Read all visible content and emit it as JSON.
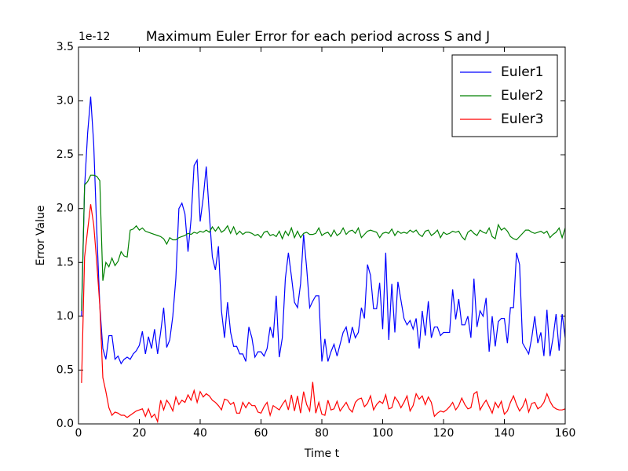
{
  "chart_data": {
    "type": "line",
    "title": "Maximum Euler Error for each period across S and J",
    "y_offset_label": "1e-12",
    "xlabel": "Time t",
    "ylabel": "Error Value",
    "xlim": [
      0,
      160
    ],
    "ylim": [
      0,
      3.5
    ],
    "xticks": [
      0,
      20,
      40,
      60,
      80,
      100,
      120,
      140,
      160
    ],
    "yticks": [
      {
        "value": 0,
        "label": "0.0"
      },
      {
        "value": 0.5,
        "label": "0.5"
      },
      {
        "value": 1,
        "label": "1.0"
      },
      {
        "value": 1.5,
        "label": "1.5"
      },
      {
        "value": 2,
        "label": "2.0"
      },
      {
        "value": 2.5,
        "label": "2.5"
      },
      {
        "value": 3,
        "label": "3.0"
      },
      {
        "value": 3.5,
        "label": "3.5"
      }
    ],
    "legend": "upper right",
    "x": [
      1,
      2,
      3,
      4,
      5,
      6,
      7,
      8,
      9,
      10,
      11,
      12,
      13,
      14,
      15,
      16,
      17,
      18,
      19,
      20,
      21,
      22,
      23,
      24,
      25,
      26,
      27,
      28,
      29,
      30,
      31,
      32,
      33,
      34,
      35,
      36,
      37,
      38,
      39,
      40,
      41,
      42,
      43,
      44,
      45,
      46,
      47,
      48,
      49,
      50,
      51,
      52,
      53,
      54,
      55,
      56,
      57,
      58,
      59,
      60,
      61,
      62,
      63,
      64,
      65,
      66,
      67,
      68,
      69,
      70,
      71,
      72,
      73,
      74,
      75,
      76,
      77,
      78,
      79,
      80,
      81,
      82,
      83,
      84,
      85,
      86,
      87,
      88,
      89,
      90,
      91,
      92,
      93,
      94,
      95,
      96,
      97,
      98,
      99,
      100,
      101,
      102,
      103,
      104,
      105,
      106,
      107,
      108,
      109,
      110,
      111,
      112,
      113,
      114,
      115,
      116,
      117,
      118,
      119,
      120,
      121,
      122,
      123,
      124,
      125,
      126,
      127,
      128,
      129,
      130,
      131,
      132,
      133,
      134,
      135,
      136,
      137,
      138,
      139,
      140,
      141,
      142,
      143,
      144,
      145,
      146,
      147,
      148,
      149,
      150,
      151,
      152,
      153,
      154,
      155,
      156,
      157,
      158,
      159,
      160
    ],
    "series": [
      {
        "name": "Euler1",
        "color": "#0000ff",
        "values": [
          1.0,
          2.2,
          2.7,
          3.04,
          2.6,
          1.8,
          1.1,
          0.7,
          0.6,
          0.82,
          0.82,
          0.6,
          0.63,
          0.56,
          0.6,
          0.62,
          0.6,
          0.65,
          0.68,
          0.73,
          0.86,
          0.65,
          0.81,
          0.7,
          0.88,
          0.65,
          0.85,
          1.08,
          0.71,
          0.78,
          1.0,
          1.35,
          2.0,
          2.05,
          1.95,
          1.6,
          1.9,
          2.4,
          2.45,
          1.88,
          2.1,
          2.39,
          1.95,
          1.55,
          1.43,
          1.65,
          1.05,
          0.8,
          1.13,
          0.85,
          0.72,
          0.72,
          0.65,
          0.65,
          0.58,
          0.9,
          0.8,
          0.62,
          0.67,
          0.67,
          0.63,
          0.7,
          0.9,
          0.8,
          1.19,
          0.62,
          0.8,
          1.35,
          1.59,
          1.37,
          1.13,
          1.08,
          1.3,
          1.76,
          1.45,
          1.08,
          1.14,
          1.19,
          1.19,
          0.58,
          0.79,
          0.58,
          0.67,
          0.74,
          0.63,
          0.74,
          0.85,
          0.9,
          0.75,
          0.9,
          0.8,
          0.85,
          1.08,
          0.98,
          1.48,
          1.38,
          1.07,
          1.07,
          1.31,
          0.88,
          1.59,
          0.78,
          1.3,
          0.85,
          1.32,
          1.15,
          0.98,
          0.92,
          0.96,
          0.88,
          0.98,
          0.7,
          1.05,
          0.82,
          1.14,
          0.8,
          0.9,
          0.9,
          0.82,
          0.85,
          0.85,
          0.85,
          1.25,
          0.97,
          1.16,
          0.92,
          0.92,
          1.0,
          0.8,
          1.35,
          0.9,
          1.05,
          1.0,
          1.17,
          0.67,
          1.0,
          0.72,
          0.95,
          0.98,
          0.98,
          0.75,
          1.08,
          1.08,
          1.59,
          1.48,
          0.75,
          0.7,
          0.65,
          0.8,
          1.0,
          0.75,
          0.85,
          0.63,
          1.06,
          0.63,
          0.8,
          1.02,
          0.68,
          1.02,
          0.8
        ]
      },
      {
        "name": "Euler2",
        "color": "#008000",
        "values": [
          1.05,
          2.22,
          2.25,
          2.31,
          2.31,
          2.3,
          2.26,
          1.33,
          1.5,
          1.46,
          1.54,
          1.47,
          1.51,
          1.6,
          1.56,
          1.55,
          1.8,
          1.81,
          1.84,
          1.8,
          1.82,
          1.79,
          1.78,
          1.77,
          1.76,
          1.75,
          1.74,
          1.72,
          1.67,
          1.73,
          1.71,
          1.71,
          1.73,
          1.74,
          1.75,
          1.77,
          1.76,
          1.78,
          1.77,
          1.79,
          1.78,
          1.8,
          1.78,
          1.83,
          1.79,
          1.83,
          1.78,
          1.8,
          1.84,
          1.77,
          1.83,
          1.76,
          1.79,
          1.76,
          1.78,
          1.78,
          1.77,
          1.75,
          1.76,
          1.73,
          1.78,
          1.79,
          1.75,
          1.76,
          1.74,
          1.79,
          1.72,
          1.79,
          1.75,
          1.82,
          1.73,
          1.79,
          1.73,
          1.77,
          1.78,
          1.76,
          1.76,
          1.77,
          1.82,
          1.75,
          1.77,
          1.78,
          1.74,
          1.8,
          1.75,
          1.77,
          1.82,
          1.76,
          1.79,
          1.8,
          1.77,
          1.82,
          1.73,
          1.76,
          1.79,
          1.8,
          1.79,
          1.78,
          1.73,
          1.77,
          1.78,
          1.77,
          1.81,
          1.75,
          1.79,
          1.77,
          1.78,
          1.77,
          1.8,
          1.78,
          1.8,
          1.76,
          1.74,
          1.79,
          1.8,
          1.75,
          1.77,
          1.8,
          1.73,
          1.78,
          1.76,
          1.77,
          1.79,
          1.78,
          1.79,
          1.74,
          1.71,
          1.78,
          1.8,
          1.77,
          1.75,
          1.8,
          1.78,
          1.77,
          1.82,
          1.74,
          1.72,
          1.85,
          1.8,
          1.82,
          1.79,
          1.74,
          1.72,
          1.71,
          1.74,
          1.77,
          1.8,
          1.8,
          1.78,
          1.77,
          1.78,
          1.79,
          1.77,
          1.79,
          1.73,
          1.76,
          1.78,
          1.82,
          1.73,
          1.82
        ]
      },
      {
        "name": "Euler3",
        "color": "#ff0000",
        "values": [
          0.38,
          1.55,
          1.8,
          2.04,
          1.85,
          1.5,
          1.1,
          0.43,
          0.3,
          0.15,
          0.08,
          0.11,
          0.1,
          0.08,
          0.08,
          0.06,
          0.08,
          0.1,
          0.12,
          0.13,
          0.14,
          0.07,
          0.14,
          0.06,
          0.09,
          0.02,
          0.22,
          0.13,
          0.22,
          0.18,
          0.12,
          0.25,
          0.18,
          0.22,
          0.2,
          0.27,
          0.22,
          0.31,
          0.2,
          0.3,
          0.25,
          0.28,
          0.26,
          0.22,
          0.2,
          0.17,
          0.13,
          0.23,
          0.22,
          0.18,
          0.2,
          0.1,
          0.1,
          0.2,
          0.15,
          0.2,
          0.17,
          0.17,
          0.11,
          0.1,
          0.16,
          0.2,
          0.08,
          0.17,
          0.15,
          0.13,
          0.18,
          0.22,
          0.13,
          0.27,
          0.12,
          0.26,
          0.1,
          0.3,
          0.18,
          0.12,
          0.39,
          0.1,
          0.2,
          0.09,
          0.08,
          0.22,
          0.13,
          0.14,
          0.21,
          0.12,
          0.16,
          0.2,
          0.14,
          0.11,
          0.2,
          0.23,
          0.24,
          0.16,
          0.19,
          0.26,
          0.13,
          0.18,
          0.21,
          0.19,
          0.27,
          0.14,
          0.15,
          0.25,
          0.21,
          0.15,
          0.2,
          0.26,
          0.12,
          0.17,
          0.28,
          0.23,
          0.26,
          0.18,
          0.25,
          0.2,
          0.07,
          0.1,
          0.12,
          0.11,
          0.13,
          0.16,
          0.2,
          0.13,
          0.17,
          0.24,
          0.18,
          0.14,
          0.15,
          0.28,
          0.3,
          0.13,
          0.18,
          0.22,
          0.16,
          0.1,
          0.2,
          0.15,
          0.21,
          0.09,
          0.12,
          0.2,
          0.26,
          0.18,
          0.12,
          0.16,
          0.23,
          0.11,
          0.19,
          0.2,
          0.14,
          0.16,
          0.2,
          0.28,
          0.21,
          0.16,
          0.14,
          0.13,
          0.13,
          0.14
        ]
      }
    ]
  }
}
